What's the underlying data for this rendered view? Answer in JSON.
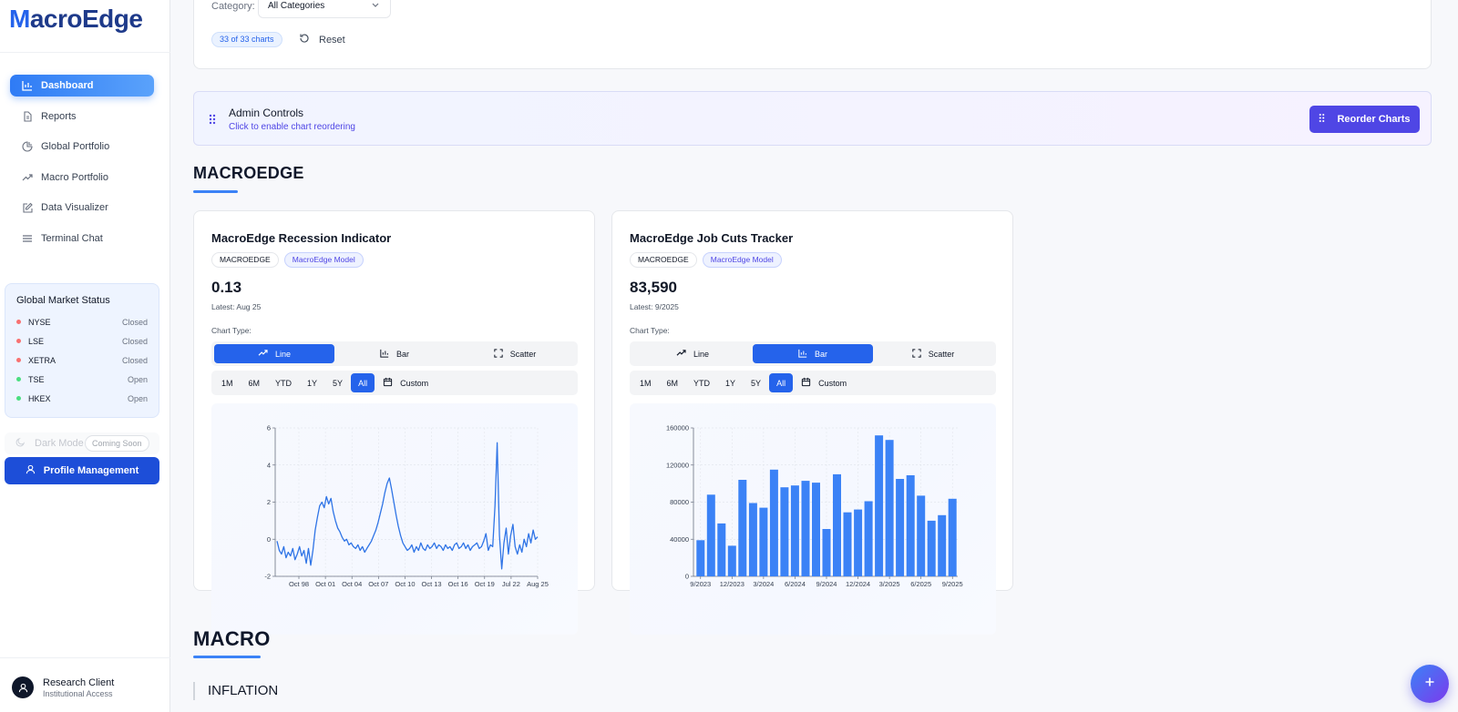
{
  "app": {
    "logo": "MacroEdge",
    "logo_first_letter": "M",
    "logo_rest": "acroEdge"
  },
  "sidebar": {
    "nav": [
      {
        "label": "Dashboard",
        "icon": "bar-chart-icon",
        "active": true
      },
      {
        "label": "Reports",
        "icon": "document-icon",
        "active": false
      },
      {
        "label": "Global Portfolio",
        "icon": "globe-chart-icon",
        "active": false
      },
      {
        "label": "Macro Portfolio",
        "icon": "trending-up-icon",
        "active": false
      },
      {
        "label": "Data Visualizer",
        "icon": "edit-icon",
        "active": false
      },
      {
        "label": "Terminal Chat",
        "icon": "menu-lines-icon",
        "active": false
      }
    ],
    "market_status": {
      "title": "Global Market Status",
      "markets": [
        {
          "name": "NYSE",
          "status": "Closed",
          "color": "#f87171"
        },
        {
          "name": "LSE",
          "status": "Closed",
          "color": "#f87171"
        },
        {
          "name": "XETRA",
          "status": "Closed",
          "color": "#f87171"
        },
        {
          "name": "TSE",
          "status": "Open",
          "color": "#4ade80"
        },
        {
          "name": "HKEX",
          "status": "Open",
          "color": "#4ade80"
        }
      ]
    },
    "dark_mode": {
      "label": "Dark Mode",
      "badge": "Coming Soon"
    },
    "profile_button": "Profile Management",
    "user": {
      "name": "Research Client",
      "role": "Institutional Access"
    }
  },
  "filters": {
    "category_label": "Category:",
    "category_value": "All Categories",
    "count": "33 of 33 charts",
    "reset": "Reset"
  },
  "admin": {
    "title": "Admin Controls",
    "subtitle": "Click to enable chart reordering",
    "reorder_button": "Reorder Charts"
  },
  "sections": {
    "macroedge": "MACROEDGE",
    "macro": "MACRO",
    "inflation": "INFLATION"
  },
  "chart_type_label": "Chart Type:",
  "chart_types": [
    "Line",
    "Bar",
    "Scatter"
  ],
  "ranges": [
    "1M",
    "6M",
    "YTD",
    "1Y",
    "5Y",
    "All"
  ],
  "custom_label": "Custom",
  "colors": {
    "accent": "#2563eb",
    "admin": "#4f46e5",
    "line": "#2f74e6"
  },
  "charts": [
    {
      "title": "MacroEdge Recession Indicator",
      "tags": [
        "MACROEDGE",
        "MacroEdge Model"
      ],
      "value": "0.13",
      "latest": "Latest: Aug 25",
      "active_type": "Line",
      "active_range": "All"
    },
    {
      "title": "MacroEdge Job Cuts Tracker",
      "tags": [
        "MACROEDGE",
        "MacroEdge Model"
      ],
      "value": "83,590",
      "latest": "Latest: 9/2025",
      "active_type": "Bar",
      "active_range": "All"
    }
  ],
  "chart_data": [
    {
      "type": "line",
      "title": "",
      "xlabel": "",
      "ylabel": "",
      "ylim": [
        -2,
        6
      ],
      "yticks": [
        -2,
        0,
        2,
        4,
        6
      ],
      "xticks": [
        "Oct 98",
        "Oct 01",
        "Oct 04",
        "Oct 07",
        "Oct 10",
        "Oct 13",
        "Oct 16",
        "Oct 19",
        "Jul 22",
        "Aug 25"
      ],
      "grid": true,
      "series": [
        {
          "values": [
            -0.1,
            -0.6,
            -0.8,
            -0.4,
            -1.0,
            -0.7,
            -0.9,
            -0.5,
            -1.1,
            -0.8,
            -0.4,
            -0.9,
            -0.6,
            -1.3,
            -0.5,
            -1.4,
            -0.6,
            0.5,
            1.2,
            1.8,
            2.0,
            1.7,
            2.3,
            1.9,
            2.2,
            1.5,
            1.0,
            0.6,
            0.4,
            0.1,
            -0.1,
            0.0,
            -0.3,
            -0.2,
            -0.4,
            -0.5,
            -0.3,
            -0.6,
            -0.4,
            -0.7,
            -0.5,
            -0.3,
            -0.1,
            0.2,
            0.5,
            0.9,
            1.4,
            1.9,
            2.5,
            3.0,
            3.3,
            2.7,
            2.0,
            1.3,
            0.7,
            0.2,
            -0.2,
            -0.4,
            -0.6,
            -0.5,
            -0.3,
            -0.7,
            -0.4,
            -0.6,
            -0.2,
            -0.5,
            -0.6,
            -0.3,
            -0.5,
            -0.4,
            -0.2,
            -0.5,
            -0.3,
            -0.4,
            -0.6,
            -0.3,
            -0.5,
            -0.4,
            -0.6,
            -0.3,
            -0.2,
            -0.5,
            -0.4,
            -0.2,
            -0.5,
            -0.3,
            -0.6,
            -0.4,
            -0.3,
            -0.2,
            -0.5,
            -0.4,
            -0.1,
            0.3,
            -0.6,
            -0.3,
            -0.4,
            1.8,
            5.2,
            0.2,
            -1.6,
            -0.2,
            0.6,
            -0.8,
            0.2,
            0.8,
            -0.4,
            -0.8,
            -0.3,
            -0.7,
            0.0,
            -0.4,
            0.3,
            -0.2,
            0.5,
            0.0,
            0.13
          ]
        }
      ]
    },
    {
      "type": "bar",
      "title": "",
      "xlabel": "",
      "ylabel": "",
      "ylim": [
        0,
        160000
      ],
      "yticks": [
        0,
        40000,
        80000,
        120000,
        160000
      ],
      "xticks": [
        "9/2023",
        "12/2023",
        "3/2024",
        "6/2024",
        "9/2024",
        "12/2024",
        "3/2025",
        "6/2025",
        "9/2025"
      ],
      "grid": true,
      "categories": [
        "9/2023",
        "10/2023",
        "11/2023",
        "12/2023",
        "1/2024",
        "2/2024",
        "3/2024",
        "4/2024",
        "5/2024",
        "6/2024",
        "7/2024",
        "8/2024",
        "9/2024",
        "10/2024",
        "11/2024",
        "12/2024",
        "1/2025",
        "2/2025",
        "3/2025",
        "4/2025",
        "5/2025",
        "6/2025",
        "7/2025",
        "8/2025",
        "9/2025"
      ],
      "values": [
        39000,
        88000,
        57000,
        33000,
        104000,
        79000,
        74000,
        115000,
        96000,
        98000,
        103000,
        101000,
        51000,
        110000,
        69000,
        72000,
        81000,
        152000,
        147000,
        105000,
        109000,
        87000,
        60000,
        66000,
        83590
      ]
    }
  ]
}
